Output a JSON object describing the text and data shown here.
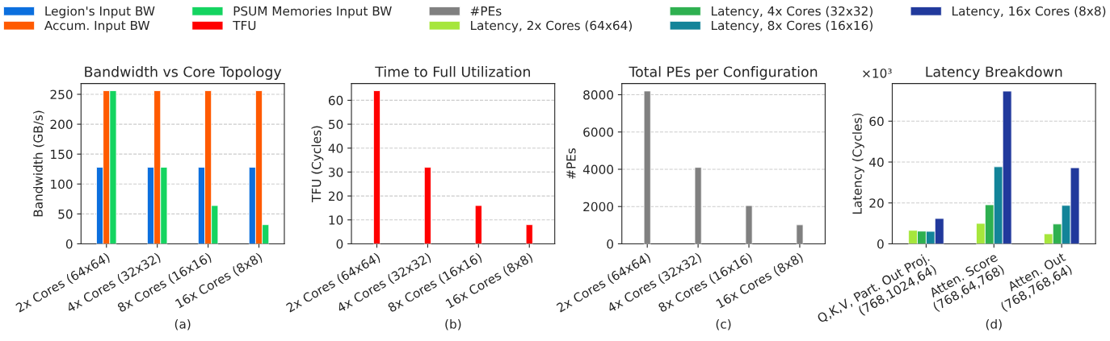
{
  "chart_data": [
    {
      "type": "bar",
      "title": "Bandwidth vs Core Topology",
      "ylabel": "Bandwidth (GB/s)",
      "categories": [
        "2x Cores (64x64)",
        "4x Cores (32x32)",
        "8x Cores (16x16)",
        "16x Cores (8x8)"
      ],
      "series": [
        {
          "name": "Legion's Input BW",
          "color": "#0b6fde",
          "values": [
            128,
            128,
            128,
            128
          ]
        },
        {
          "name": "Accum. Input BW",
          "color": "#ff5a00",
          "values": [
            256,
            256,
            256,
            256
          ]
        },
        {
          "name": "PSUM Memories Input BW",
          "color": "#14d460",
          "values": [
            256,
            128,
            64,
            32
          ]
        }
      ],
      "ylim": [
        0,
        268
      ],
      "yticks": [
        0,
        50,
        100,
        150,
        200,
        250
      ],
      "grid": "y",
      "legend": "top",
      "annotations": [
        "(a)"
      ]
    },
    {
      "type": "bar",
      "title": "Time to Full Utilization",
      "ylabel": "TFU (Cycles)",
      "categories": [
        "2x Cores (64x64)",
        "4x Cores (32x32)",
        "8x Cores (16x16)",
        "16x Cores (8x8)"
      ],
      "series": [
        {
          "name": "TFU",
          "color": "#ff0000",
          "values": [
            64,
            32,
            16,
            8
          ]
        }
      ],
      "ylim": [
        0,
        67
      ],
      "yticks": [
        0,
        10,
        20,
        30,
        40,
        50,
        60
      ],
      "grid": "y",
      "legend": "top",
      "annotations": [
        "(b)"
      ]
    },
    {
      "type": "bar",
      "title": "Total PEs per Configuration",
      "ylabel": "#PEs",
      "categories": [
        "2x Cores (64x64)",
        "4x Cores (32x32)",
        "8x Cores (16x16)",
        "16x Cores (8x8)"
      ],
      "series": [
        {
          "name": "#PEs",
          "color": "#808080",
          "values": [
            8200,
            4100,
            2050,
            1020
          ]
        }
      ],
      "ylim": [
        0,
        8600
      ],
      "yticks": [
        0,
        2000,
        4000,
        6000,
        8000
      ],
      "grid": "y",
      "legend": "top",
      "annotations": [
        "(c)"
      ]
    },
    {
      "type": "bar",
      "title": "Latency Breakdown",
      "ylabel": "Latency (Cycles)",
      "categories": [
        "Q,K,V, Part. Out Proj.\n(768,1024,64)",
        "Atten. Score\n(768,64,768)",
        "Atten. Out\n(768,768,64)"
      ],
      "series": [
        {
          "name": "Latency, 2x Cores (64x64)",
          "color": "#a6e63c",
          "values": [
            6.6,
            10.0,
            4.9
          ]
        },
        {
          "name": "Latency, 4x Cores (32x32)",
          "color": "#2eb050",
          "values": [
            6.2,
            19.1,
            9.7
          ]
        },
        {
          "name": "Latency, 8x Cores (16x16)",
          "color": "#138499",
          "values": [
            6.1,
            37.7,
            18.8
          ]
        },
        {
          "name": "Latency, 16x Cores (8x8)",
          "color": "#21399c",
          "values": [
            12.4,
            74.7,
            37.2
          ]
        }
      ],
      "ylim": [
        0,
        78.4
      ],
      "yticks": [
        0,
        20,
        40,
        60
      ],
      "grid": "y",
      "legend": "top",
      "annotations": [
        "(d)",
        "×10³"
      ]
    }
  ]
}
